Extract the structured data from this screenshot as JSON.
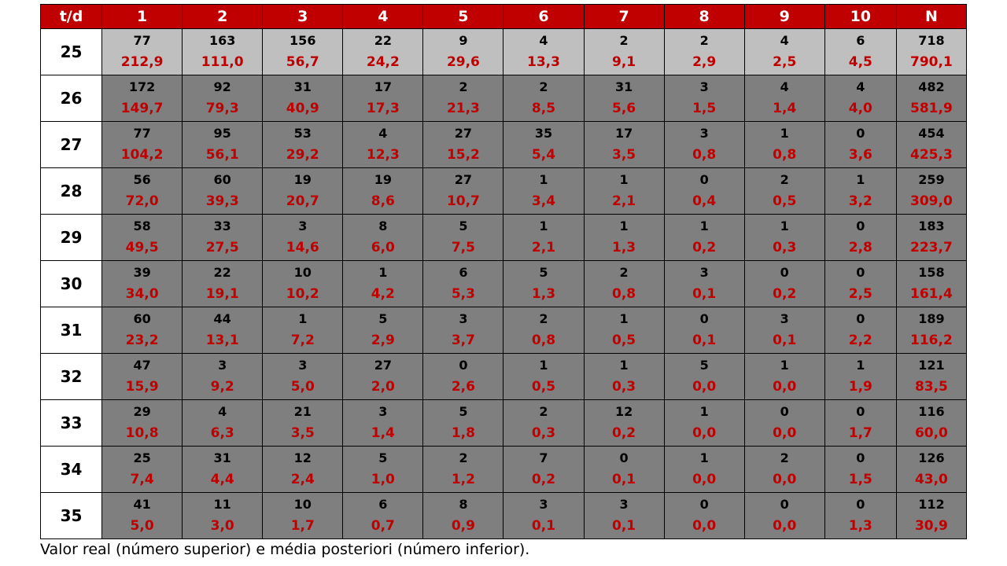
{
  "table": {
    "corner": "t/d",
    "columns": [
      "1",
      "2",
      "3",
      "4",
      "5",
      "6",
      "7",
      "8",
      "9",
      "10",
      "N"
    ],
    "rows": [
      {
        "t": "25",
        "shade": "light",
        "real": [
          "77",
          "163",
          "156",
          "22",
          "9",
          "4",
          "2",
          "2",
          "4",
          "6",
          "718"
        ],
        "posterior": [
          "212,9",
          "111,0",
          "56,7",
          "24,2",
          "29,6",
          "13,3",
          "9,1",
          "2,9",
          "2,5",
          "4,5",
          "790,1"
        ]
      },
      {
        "t": "26",
        "shade": "dark",
        "real": [
          "172",
          "92",
          "31",
          "17",
          "2",
          "2",
          "31",
          "3",
          "4",
          "4",
          "482"
        ],
        "posterior": [
          "149,7",
          "79,3",
          "40,9",
          "17,3",
          "21,3",
          "8,5",
          "5,6",
          "1,5",
          "1,4",
          "4,0",
          "581,9"
        ]
      },
      {
        "t": "27",
        "shade": "dark",
        "real": [
          "77",
          "95",
          "53",
          "4",
          "27",
          "35",
          "17",
          "3",
          "1",
          "0",
          "454"
        ],
        "posterior": [
          "104,2",
          "56,1",
          "29,2",
          "12,3",
          "15,2",
          "5,4",
          "3,5",
          "0,8",
          "0,8",
          "3,6",
          "425,3"
        ]
      },
      {
        "t": "28",
        "shade": "dark",
        "real": [
          "56",
          "60",
          "19",
          "19",
          "27",
          "1",
          "1",
          "0",
          "2",
          "1",
          "259"
        ],
        "posterior": [
          "72,0",
          "39,3",
          "20,7",
          "8,6",
          "10,7",
          "3,4",
          "2,1",
          "0,4",
          "0,5",
          "3,2",
          "309,0"
        ]
      },
      {
        "t": "29",
        "shade": "dark",
        "real": [
          "58",
          "33",
          "3",
          "8",
          "5",
          "1",
          "1",
          "1",
          "1",
          "0",
          "183"
        ],
        "posterior": [
          "49,5",
          "27,5",
          "14,6",
          "6,0",
          "7,5",
          "2,1",
          "1,3",
          "0,2",
          "0,3",
          "2,8",
          "223,7"
        ]
      },
      {
        "t": "30",
        "shade": "dark",
        "real": [
          "39",
          "22",
          "10",
          "1",
          "6",
          "5",
          "2",
          "3",
          "0",
          "0",
          "158"
        ],
        "posterior": [
          "34,0",
          "19,1",
          "10,2",
          "4,2",
          "5,3",
          "1,3",
          "0,8",
          "0,1",
          "0,2",
          "2,5",
          "161,4"
        ]
      },
      {
        "t": "31",
        "shade": "dark",
        "real": [
          "60",
          "44",
          "1",
          "5",
          "3",
          "2",
          "1",
          "0",
          "3",
          "0",
          "189"
        ],
        "posterior": [
          "23,2",
          "13,1",
          "7,2",
          "2,9",
          "3,7",
          "0,8",
          "0,5",
          "0,1",
          "0,1",
          "2,2",
          "116,2"
        ]
      },
      {
        "t": "32",
        "shade": "dark",
        "real": [
          "47",
          "3",
          "3",
          "27",
          "0",
          "1",
          "1",
          "5",
          "1",
          "1",
          "121"
        ],
        "posterior": [
          "15,9",
          "9,2",
          "5,0",
          "2,0",
          "2,6",
          "0,5",
          "0,3",
          "0,0",
          "0,0",
          "1,9",
          "83,5"
        ]
      },
      {
        "t": "33",
        "shade": "dark",
        "real": [
          "29",
          "4",
          "21",
          "3",
          "5",
          "2",
          "12",
          "1",
          "0",
          "0",
          "116"
        ],
        "posterior": [
          "10,8",
          "6,3",
          "3,5",
          "1,4",
          "1,8",
          "0,3",
          "0,2",
          "0,0",
          "0,0",
          "1,7",
          "60,0"
        ]
      },
      {
        "t": "34",
        "shade": "dark",
        "real": [
          "25",
          "31",
          "12",
          "5",
          "2",
          "7",
          "0",
          "1",
          "2",
          "0",
          "126"
        ],
        "posterior": [
          "7,4",
          "4,4",
          "2,4",
          "1,0",
          "1,2",
          "0,2",
          "0,1",
          "0,0",
          "0,0",
          "1,5",
          "43,0"
        ]
      },
      {
        "t": "35",
        "shade": "dark",
        "real": [
          "41",
          "11",
          "10",
          "6",
          "8",
          "3",
          "3",
          "0",
          "0",
          "0",
          "112"
        ],
        "posterior": [
          "5,0",
          "3,0",
          "1,7",
          "0,7",
          "0,9",
          "0,1",
          "0,1",
          "0,0",
          "0,0",
          "1,3",
          "30,9"
        ]
      }
    ]
  },
  "caption": "Valor real  (número superior) e média posteriori (número inferior).",
  "colors": {
    "header_bg": "#c00000",
    "header_text": "#ffffff",
    "posterior_text": "#c00000",
    "row_light_bg": "#bfbfbf",
    "row_dark_bg": "#7f7f7f"
  }
}
